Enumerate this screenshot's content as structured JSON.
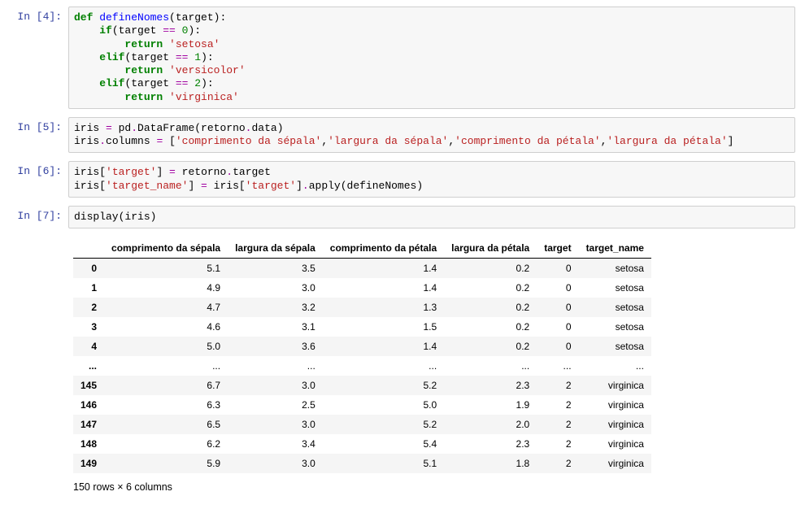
{
  "cells": [
    {
      "prompt": "In [4]:",
      "type": "code",
      "tokens": [
        {
          "t": "def ",
          "c": "k-def"
        },
        {
          "t": "defineNomes",
          "c": "fn-name"
        },
        {
          "t": "(target):"
        },
        {
          "t": "\n"
        },
        {
          "t": "    "
        },
        {
          "t": "if",
          "c": "k-cond"
        },
        {
          "t": "(target "
        },
        {
          "t": "==",
          "c": "op"
        },
        {
          "t": " "
        },
        {
          "t": "0",
          "c": "num"
        },
        {
          "t": "):"
        },
        {
          "t": "\n"
        },
        {
          "t": "        "
        },
        {
          "t": "return",
          "c": "k-ret"
        },
        {
          "t": " "
        },
        {
          "t": "'setosa'",
          "c": "str"
        },
        {
          "t": "\n"
        },
        {
          "t": "    "
        },
        {
          "t": "elif",
          "c": "k-cond"
        },
        {
          "t": "(target "
        },
        {
          "t": "==",
          "c": "op"
        },
        {
          "t": " "
        },
        {
          "t": "1",
          "c": "num"
        },
        {
          "t": "):"
        },
        {
          "t": "\n"
        },
        {
          "t": "        "
        },
        {
          "t": "return",
          "c": "k-ret"
        },
        {
          "t": " "
        },
        {
          "t": "'versicolor'",
          "c": "str"
        },
        {
          "t": "\n"
        },
        {
          "t": "    "
        },
        {
          "t": "elif",
          "c": "k-cond"
        },
        {
          "t": "(target "
        },
        {
          "t": "==",
          "c": "op"
        },
        {
          "t": " "
        },
        {
          "t": "2",
          "c": "num"
        },
        {
          "t": "):"
        },
        {
          "t": "\n"
        },
        {
          "t": "        "
        },
        {
          "t": "return",
          "c": "k-ret"
        },
        {
          "t": " "
        },
        {
          "t": "'virginica'",
          "c": "str"
        }
      ]
    },
    {
      "prompt": "In [5]:",
      "type": "code",
      "tokens": [
        {
          "t": "iris "
        },
        {
          "t": "=",
          "c": "op"
        },
        {
          "t": " pd"
        },
        {
          "t": ".",
          "c": "op"
        },
        {
          "t": "DataFrame(retorno"
        },
        {
          "t": ".",
          "c": "op"
        },
        {
          "t": "data)"
        },
        {
          "t": "\n"
        },
        {
          "t": "iris"
        },
        {
          "t": ".",
          "c": "op"
        },
        {
          "t": "columns "
        },
        {
          "t": "=",
          "c": "op"
        },
        {
          "t": " ["
        },
        {
          "t": "'comprimento da sépala'",
          "c": "str"
        },
        {
          "t": ","
        },
        {
          "t": "'largura da sépala'",
          "c": "str"
        },
        {
          "t": ","
        },
        {
          "t": "'comprimento da pétala'",
          "c": "str"
        },
        {
          "t": ","
        },
        {
          "t": "'largura da pétala'",
          "c": "str"
        },
        {
          "t": "]"
        }
      ]
    },
    {
      "prompt": "In [6]:",
      "type": "code",
      "tokens": [
        {
          "t": "iris["
        },
        {
          "t": "'target'",
          "c": "str"
        },
        {
          "t": "] "
        },
        {
          "t": "=",
          "c": "op"
        },
        {
          "t": " retorno"
        },
        {
          "t": ".",
          "c": "op"
        },
        {
          "t": "target"
        },
        {
          "t": "\n"
        },
        {
          "t": "iris["
        },
        {
          "t": "'target_name'",
          "c": "str"
        },
        {
          "t": "] "
        },
        {
          "t": "=",
          "c": "op"
        },
        {
          "t": " iris["
        },
        {
          "t": "'target'",
          "c": "str"
        },
        {
          "t": "]"
        },
        {
          "t": ".",
          "c": "op"
        },
        {
          "t": "apply(defineNomes)"
        }
      ]
    },
    {
      "prompt": "In [7]:",
      "type": "code",
      "tokens": [
        {
          "t": "display(iris)"
        }
      ]
    }
  ],
  "table": {
    "columns": [
      "comprimento da sépala",
      "largura da sépala",
      "comprimento da pétala",
      "largura da pétala",
      "target",
      "target_name"
    ],
    "index": [
      "0",
      "1",
      "2",
      "3",
      "4",
      "...",
      "145",
      "146",
      "147",
      "148",
      "149"
    ],
    "rows": [
      [
        "5.1",
        "3.5",
        "1.4",
        "0.2",
        "0",
        "setosa"
      ],
      [
        "4.9",
        "3.0",
        "1.4",
        "0.2",
        "0",
        "setosa"
      ],
      [
        "4.7",
        "3.2",
        "1.3",
        "0.2",
        "0",
        "setosa"
      ],
      [
        "4.6",
        "3.1",
        "1.5",
        "0.2",
        "0",
        "setosa"
      ],
      [
        "5.0",
        "3.6",
        "1.4",
        "0.2",
        "0",
        "setosa"
      ],
      [
        "...",
        "...",
        "...",
        "...",
        "...",
        "..."
      ],
      [
        "6.7",
        "3.0",
        "5.2",
        "2.3",
        "2",
        "virginica"
      ],
      [
        "6.3",
        "2.5",
        "5.0",
        "1.9",
        "2",
        "virginica"
      ],
      [
        "6.5",
        "3.0",
        "5.2",
        "2.0",
        "2",
        "virginica"
      ],
      [
        "6.2",
        "3.4",
        "5.4",
        "2.3",
        "2",
        "virginica"
      ],
      [
        "5.9",
        "3.0",
        "5.1",
        "1.8",
        "2",
        "virginica"
      ]
    ],
    "caption": "150 rows × 6 columns",
    "stripe_color": "#f5f5f5",
    "header_border_color": "#000000"
  }
}
